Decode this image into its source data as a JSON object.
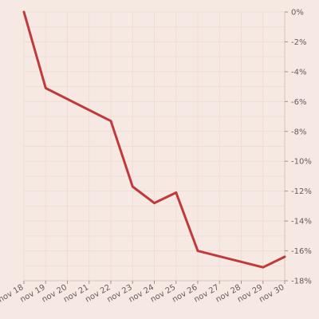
{
  "chart_data": {
    "type": "line",
    "categories": [
      "nov 18",
      "nov 19",
      "nov 20",
      "nov 21",
      "nov 22",
      "nov 23",
      "nov 24",
      "nov 25",
      "nov 26",
      "nov 27",
      "nov 28",
      "nov 29",
      "nov 30"
    ],
    "series": [
      {
        "values": [
          0,
          -5.1,
          null,
          null,
          -7.3,
          -11.7,
          -12.8,
          -12.1,
          -16.0,
          null,
          null,
          -17.1,
          -16.4
        ],
        "color": "#c0393b"
      }
    ],
    "ylim": [
      -18,
      0
    ],
    "yticks": [
      0,
      -2,
      -4,
      -6,
      -8,
      -10,
      -12,
      -14,
      -16,
      -18
    ],
    "ytick_labels": [
      "0%",
      "-2%",
      "-4%",
      "-6%",
      "-8%",
      "-10%",
      "-12%",
      "-14%",
      "-16%",
      "-18%"
    ],
    "y_axis_position": "right",
    "grid": true,
    "title": "",
    "xlabel": "",
    "ylabel": ""
  }
}
